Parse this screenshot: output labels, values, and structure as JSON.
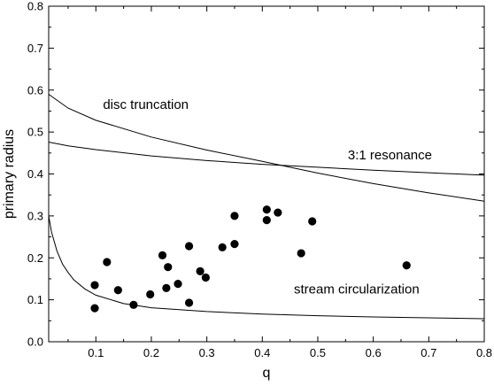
{
  "chart_data": {
    "type": "scatter",
    "title": "",
    "xlabel": "q",
    "ylabel": "primary radius",
    "xlim": [
      0.015,
      0.8
    ],
    "ylim": [
      0.0,
      0.8
    ],
    "grid": false,
    "x_ticks": [
      "0.1",
      "0.2",
      "0.3",
      "0.4",
      "0.5",
      "0.6",
      "0.7",
      "0.8"
    ],
    "y_ticks": [
      "0.0",
      "0.1",
      "0.2",
      "0.3",
      "0.4",
      "0.5",
      "0.6",
      "0.7",
      "0.8"
    ],
    "points": [
      {
        "x": 0.098,
        "y": 0.135
      },
      {
        "x": 0.098,
        "y": 0.08
      },
      {
        "x": 0.12,
        "y": 0.19
      },
      {
        "x": 0.14,
        "y": 0.123
      },
      {
        "x": 0.168,
        "y": 0.088
      },
      {
        "x": 0.198,
        "y": 0.113
      },
      {
        "x": 0.22,
        "y": 0.206
      },
      {
        "x": 0.227,
        "y": 0.128
      },
      {
        "x": 0.23,
        "y": 0.178
      },
      {
        "x": 0.248,
        "y": 0.138
      },
      {
        "x": 0.268,
        "y": 0.228
      },
      {
        "x": 0.268,
        "y": 0.093
      },
      {
        "x": 0.288,
        "y": 0.168
      },
      {
        "x": 0.298,
        "y": 0.153
      },
      {
        "x": 0.328,
        "y": 0.225
      },
      {
        "x": 0.35,
        "y": 0.3
      },
      {
        "x": 0.35,
        "y": 0.233
      },
      {
        "x": 0.408,
        "y": 0.315
      },
      {
        "x": 0.408,
        "y": 0.29
      },
      {
        "x": 0.428,
        "y": 0.308
      },
      {
        "x": 0.47,
        "y": 0.211
      },
      {
        "x": 0.49,
        "y": 0.287
      },
      {
        "x": 0.66,
        "y": 0.182
      }
    ],
    "curves": [
      {
        "label": "disc truncation",
        "x": [
          0.015,
          0.05,
          0.1,
          0.2,
          0.3,
          0.4,
          0.5,
          0.6,
          0.7,
          0.8
        ],
        "y": [
          0.59,
          0.557,
          0.528,
          0.488,
          0.457,
          0.43,
          0.402,
          0.377,
          0.355,
          0.335
        ]
      },
      {
        "label": "3:1 resonance",
        "x": [
          0.015,
          0.05,
          0.1,
          0.2,
          0.3,
          0.4,
          0.5,
          0.6,
          0.7,
          0.8
        ],
        "y": [
          0.476,
          0.467,
          0.458,
          0.443,
          0.432,
          0.423,
          0.416,
          0.409,
          0.403,
          0.397
        ]
      },
      {
        "label": "stream circularization",
        "x": [
          0.015,
          0.02,
          0.03,
          0.04,
          0.05,
          0.06,
          0.08,
          0.1,
          0.15,
          0.2,
          0.3,
          0.4,
          0.5,
          0.6,
          0.7,
          0.8
        ],
        "y": [
          0.3,
          0.262,
          0.216,
          0.185,
          0.165,
          0.148,
          0.126,
          0.111,
          0.091,
          0.081,
          0.072,
          0.066,
          0.062,
          0.059,
          0.057,
          0.055
        ]
      }
    ],
    "annotations": [
      {
        "text": "disc truncation",
        "x": 0.19,
        "y": 0.555
      },
      {
        "text": "3:1 resonance",
        "x": 0.63,
        "y": 0.435
      },
      {
        "text": "stream circularization",
        "x": 0.57,
        "y": 0.115
      }
    ]
  }
}
